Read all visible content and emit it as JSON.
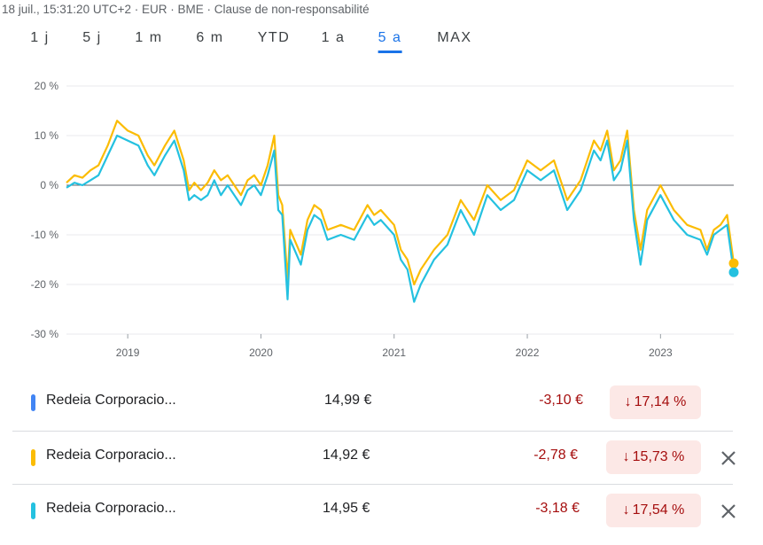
{
  "header": {
    "meta": "18 juil., 15:31:20 UTC+2 · EUR · BME · Clause de non-responsabilité"
  },
  "ranges": [
    {
      "label": "1 j",
      "active": false
    },
    {
      "label": "5 j",
      "active": false
    },
    {
      "label": "1 m",
      "active": false
    },
    {
      "label": "6 m",
      "active": false
    },
    {
      "label": "YTD",
      "active": false
    },
    {
      "label": "1 a",
      "active": false
    },
    {
      "label": "5 a",
      "active": true
    },
    {
      "label": "MAX",
      "active": false
    }
  ],
  "chart_data": {
    "type": "line",
    "ylim": [
      -30,
      20
    ],
    "yticks": [
      20,
      10,
      0,
      -10,
      -20,
      -30
    ],
    "ytick_labels": [
      "20 %",
      "10 %",
      "0 %",
      "-10 %",
      "-20 %",
      "-30 %"
    ],
    "xticks": [
      2019,
      2020,
      2021,
      2022,
      2023
    ],
    "xtick_labels": [
      "2019",
      "2020",
      "2021",
      "2022",
      "2023"
    ],
    "xlim": [
      2018.54,
      2023.55
    ],
    "baseline": 0,
    "grid": true,
    "series": [
      {
        "color": "#fbbc04",
        "x": [
          2018.54,
          2018.6,
          2018.66,
          2018.72,
          2018.78,
          2018.85,
          2018.92,
          2019.0,
          2019.08,
          2019.15,
          2019.2,
          2019.28,
          2019.35,
          2019.42,
          2019.46,
          2019.5,
          2019.55,
          2019.6,
          2019.65,
          2019.7,
          2019.75,
          2019.8,
          2019.85,
          2019.9,
          2019.95,
          2020.0,
          2020.05,
          2020.1,
          2020.13,
          2020.16,
          2020.2,
          2020.22,
          2020.3,
          2020.35,
          2020.4,
          2020.45,
          2020.5,
          2020.6,
          2020.7,
          2020.8,
          2020.85,
          2020.9,
          2021.0,
          2021.05,
          2021.1,
          2021.15,
          2021.2,
          2021.3,
          2021.4,
          2021.5,
          2021.6,
          2021.7,
          2021.8,
          2021.9,
          2022.0,
          2022.1,
          2022.2,
          2022.3,
          2022.4,
          2022.5,
          2022.55,
          2022.6,
          2022.65,
          2022.7,
          2022.75,
          2022.8,
          2022.85,
          2022.9,
          2023.0,
          2023.1,
          2023.2,
          2023.3,
          2023.35,
          2023.4,
          2023.45,
          2023.5,
          2023.55
        ],
        "values": [
          0.5,
          2.0,
          1.5,
          3.0,
          4.0,
          8.0,
          13.0,
          11.0,
          10.0,
          6.0,
          4.0,
          8.0,
          11.0,
          5.0,
          -1.0,
          0.5,
          -1.0,
          0.5,
          3.0,
          1.0,
          2.0,
          0.0,
          -2.0,
          1.0,
          2.0,
          0.0,
          4.0,
          10.0,
          -2.0,
          -4.0,
          -19.0,
          -9.0,
          -14.0,
          -7.0,
          -4.0,
          -5.0,
          -9.0,
          -8.0,
          -9.0,
          -4.0,
          -6.0,
          -5.0,
          -8.0,
          -13.0,
          -15.0,
          -20.0,
          -17.0,
          -13.0,
          -10.0,
          -3.0,
          -7.0,
          0.0,
          -3.0,
          -1.0,
          5.0,
          3.0,
          5.0,
          -3.0,
          1.0,
          9.0,
          7.0,
          11.0,
          3.0,
          5.0,
          11.0,
          -5.0,
          -13.0,
          -5.0,
          0.0,
          -5.0,
          -8.0,
          -9.0,
          -13.0,
          -9.0,
          -8.0,
          -6.0,
          -15.73
        ]
      },
      {
        "color": "#24c1e0",
        "x": [
          2018.54,
          2018.6,
          2018.66,
          2018.72,
          2018.78,
          2018.85,
          2018.92,
          2019.0,
          2019.08,
          2019.15,
          2019.2,
          2019.28,
          2019.35,
          2019.42,
          2019.46,
          2019.5,
          2019.55,
          2019.6,
          2019.65,
          2019.7,
          2019.75,
          2019.8,
          2019.85,
          2019.9,
          2019.95,
          2020.0,
          2020.05,
          2020.1,
          2020.13,
          2020.16,
          2020.2,
          2020.22,
          2020.3,
          2020.35,
          2020.4,
          2020.45,
          2020.5,
          2020.6,
          2020.7,
          2020.8,
          2020.85,
          2020.9,
          2021.0,
          2021.05,
          2021.1,
          2021.15,
          2021.2,
          2021.3,
          2021.4,
          2021.5,
          2021.6,
          2021.7,
          2021.8,
          2021.9,
          2022.0,
          2022.1,
          2022.2,
          2022.3,
          2022.4,
          2022.5,
          2022.55,
          2022.6,
          2022.65,
          2022.7,
          2022.75,
          2022.8,
          2022.85,
          2022.9,
          2023.0,
          2023.1,
          2023.2,
          2023.3,
          2023.35,
          2023.4,
          2023.45,
          2023.5,
          2023.55
        ],
        "values": [
          -0.5,
          0.5,
          0.0,
          1.0,
          2.0,
          6.0,
          10.0,
          9.0,
          8.0,
          4.0,
          2.0,
          6.0,
          9.0,
          3.0,
          -3.0,
          -2.0,
          -3.0,
          -2.0,
          1.0,
          -2.0,
          0.0,
          -2.0,
          -4.0,
          -1.0,
          0.0,
          -2.0,
          2.0,
          7.0,
          -5.0,
          -6.0,
          -23.0,
          -11.0,
          -16.0,
          -9.0,
          -6.0,
          -7.0,
          -11.0,
          -10.0,
          -11.0,
          -6.0,
          -8.0,
          -7.0,
          -10.0,
          -15.0,
          -17.0,
          -23.5,
          -20.0,
          -15.0,
          -12.0,
          -5.0,
          -10.0,
          -2.0,
          -5.0,
          -3.0,
          3.0,
          1.0,
          3.0,
          -5.0,
          -1.0,
          7.0,
          5.0,
          9.0,
          1.0,
          3.0,
          9.0,
          -7.0,
          -16.0,
          -7.0,
          -2.0,
          -7.0,
          -10.0,
          -11.0,
          -14.0,
          -10.0,
          -9.0,
          -8.0,
          -17.54
        ]
      }
    ]
  },
  "rows": [
    {
      "color": "#4285f4",
      "name": "Redeia Corporacio...",
      "price": "14,99 €",
      "change": "-3,10 €",
      "arrow": "↓",
      "pct": "17,14 %",
      "removable": false
    },
    {
      "color": "#fbbc04",
      "name": "Redeia Corporacio...",
      "price": "14,92 €",
      "change": "-2,78 €",
      "arrow": "↓",
      "pct": "15,73 %",
      "removable": true
    },
    {
      "color": "#24c1e0",
      "name": "Redeia Corporacio...",
      "price": "14,95 €",
      "change": "-3,18 €",
      "arrow": "↓",
      "pct": "17,54 %",
      "removable": true
    }
  ]
}
